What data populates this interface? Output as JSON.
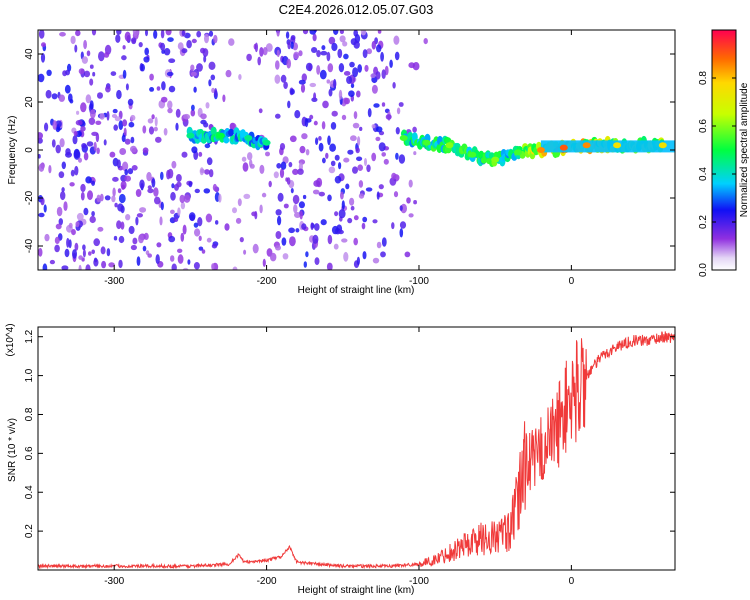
{
  "title": "C2E4.2026.012.05.07.G03",
  "chart_data": [
    {
      "type": "heatmap",
      "title": "C2E4.2026.012.05.07.G03",
      "xlabel": "Height of straight line (km)",
      "ylabel": "Frequency (Hz)",
      "xlim": [
        -350,
        68
      ],
      "ylim": [
        -50,
        50
      ],
      "xticks": [
        "-300",
        "-200",
        "-100",
        "0"
      ],
      "yticks": [
        "-40",
        "-20",
        "0",
        "20",
        "40"
      ],
      "colorbar": {
        "label": "Normalized spectral amplitude",
        "range": [
          0,
          1
        ],
        "ticks": [
          "0.0",
          "0.2",
          "0.4",
          "0.6",
          "0.8"
        ]
      },
      "signal_track": [
        {
          "x": -250,
          "freq": 6,
          "amp": 0.45
        },
        {
          "x": -230,
          "freq": 6,
          "amp": 0.5
        },
        {
          "x": -212,
          "freq": 5,
          "amp": 0.45
        },
        {
          "x": -200,
          "freq": 3,
          "amp": 0.45
        },
        {
          "x": -110,
          "freq": 5,
          "amp": 0.55
        },
        {
          "x": -95,
          "freq": 3,
          "amp": 0.55
        },
        {
          "x": -80,
          "freq": 2,
          "amp": 0.6
        },
        {
          "x": -65,
          "freq": -2,
          "amp": 0.55
        },
        {
          "x": -50,
          "freq": -4,
          "amp": 0.6
        },
        {
          "x": -35,
          "freq": -1,
          "amp": 0.55
        },
        {
          "x": -20,
          "freq": 0,
          "amp": 0.85
        },
        {
          "x": -5,
          "freq": 1,
          "amp": 0.9
        },
        {
          "x": 10,
          "freq": 2,
          "amp": 0.85
        },
        {
          "x": 30,
          "freq": 2,
          "amp": 0.75
        },
        {
          "x": 60,
          "freq": 2,
          "amp": 0.75
        }
      ]
    },
    {
      "type": "line",
      "xlabel": "Height of straight line (km)",
      "ylabel": "SNR (10 * v/v)",
      "yscale_label": "(x10^4)",
      "xlim": [
        -350,
        68
      ],
      "ylim": [
        0,
        1.25
      ],
      "xticks": [
        "-300",
        "-200",
        "-100",
        "0"
      ],
      "yticks": [
        "0.2",
        "0.4",
        "0.6",
        "0.8",
        "1.0",
        "1.2"
      ],
      "series": [
        {
          "name": "SNR",
          "color": "#f03a3a",
          "x": [
            -350,
            -300,
            -250,
            -225,
            -218,
            -215,
            -200,
            -190,
            -185,
            -180,
            -150,
            -120,
            -100,
            -90,
            -80,
            -70,
            -60,
            -50,
            -40,
            -35,
            -30,
            -25,
            -20,
            -15,
            -10,
            -5,
            0,
            10,
            20,
            30,
            40,
            50,
            60,
            68
          ],
          "y": [
            0.02,
            0.02,
            0.02,
            0.03,
            0.08,
            0.04,
            0.05,
            0.07,
            0.12,
            0.04,
            0.02,
            0.02,
            0.03,
            0.05,
            0.09,
            0.13,
            0.16,
            0.17,
            0.2,
            0.35,
            0.6,
            0.55,
            0.62,
            0.66,
            0.72,
            0.82,
            0.88,
            1.0,
            1.1,
            1.15,
            1.18,
            1.18,
            1.2,
            1.19
          ]
        }
      ]
    }
  ]
}
